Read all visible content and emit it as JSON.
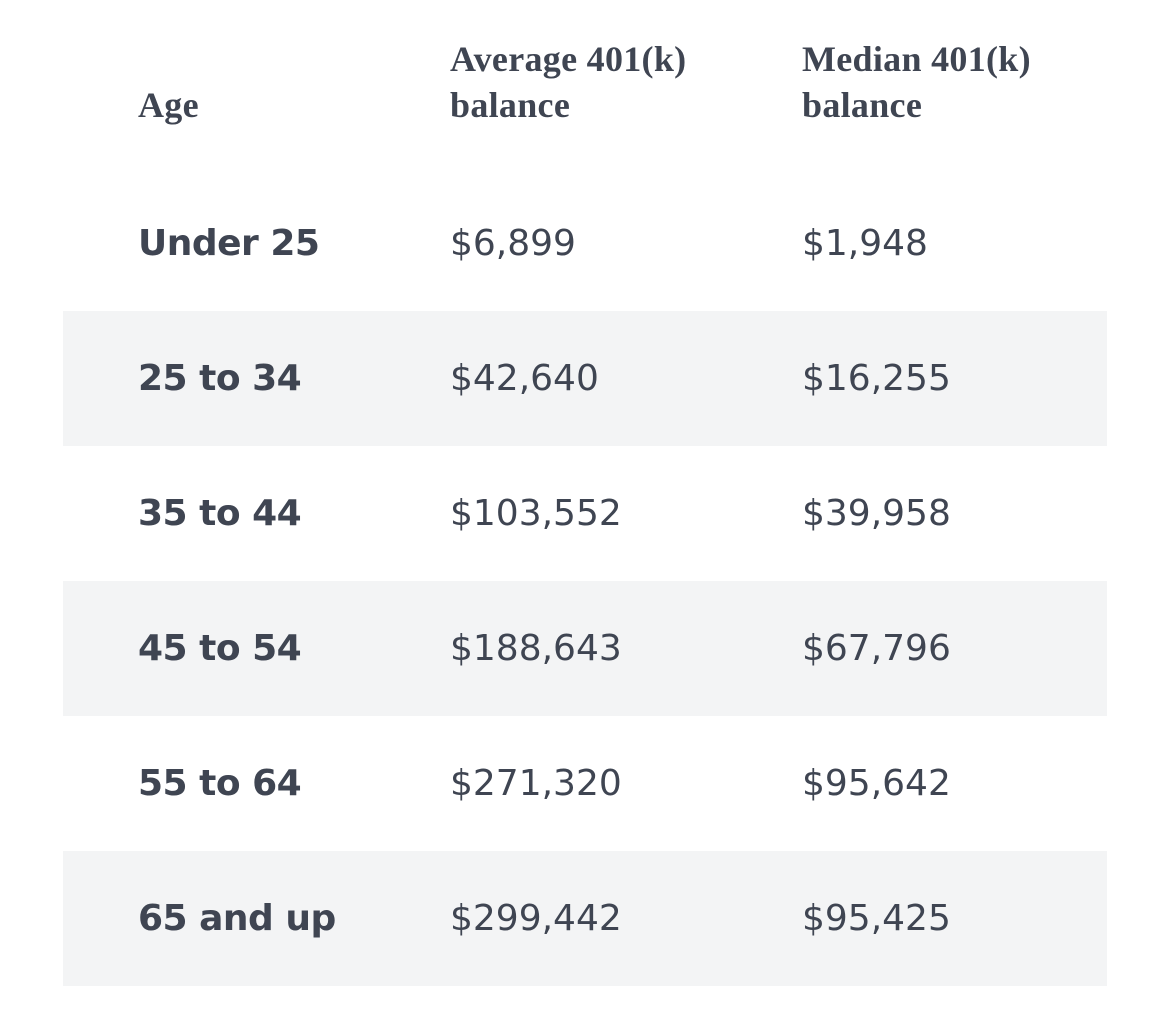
{
  "table": {
    "headers": {
      "age": "Age",
      "average": "Average 401(k)\nbalance",
      "median": "Median 401(k)\nbalance"
    },
    "rows": [
      {
        "age": "Under 25",
        "average": "$6,899",
        "median": "$1,948"
      },
      {
        "age": "25 to 34",
        "average": "$42,640",
        "median": "$16,255"
      },
      {
        "age": "35 to 44",
        "average": "$103,552",
        "median": "$39,958"
      },
      {
        "age": "45 to 54",
        "average": "$188,643",
        "median": "$67,796"
      },
      {
        "age": "55 to 64",
        "average": "$271,320",
        "median": "$95,642"
      },
      {
        "age": "65 and up",
        "average": "$299,442",
        "median": "$95,425"
      }
    ],
    "colors": {
      "text": "#3f4552",
      "shaded_row": "#f3f4f5",
      "background": "#ffffff"
    }
  }
}
